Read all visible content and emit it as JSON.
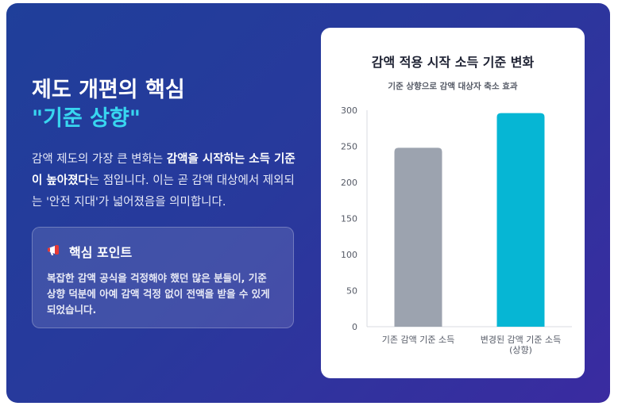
{
  "heading": {
    "line1": "제도 개편의 핵심",
    "line2": "\"기준 상향\""
  },
  "description": {
    "part1": "감액 제도의 가장 큰 변화는 ",
    "bold1": "감액을 시작하는 소득 기준이 높아졌다",
    "part2": "는 점입니다. 이는 곧 감액 대상에서 제외되는 '안전 지대'가 넓어졌음을 의미합니다."
  },
  "key_point": {
    "icon": "megaphone-icon",
    "title": "핵심 포인트",
    "body": "복잡한 감액 공식을 걱정해야 했던 많은 분들이, 기준 상향 덕분에 아예 감액 걱정 없이 전액을 받을 수 있게 되었습니다."
  },
  "chart_data": {
    "type": "bar",
    "title": "감액 적용 시작 소득 기준 변화",
    "subtitle": "기준 상향으로 감액 대상자 축소 효과",
    "categories": [
      "기존 감액 기준 소득",
      "변경된 감액 기준 소득 (상향)"
    ],
    "category_lines": [
      [
        "기존 감액 기준 소득"
      ],
      [
        "변경된 감액 기준 소득",
        "(상향)"
      ]
    ],
    "values": [
      248,
      296
    ],
    "colors": [
      "#9ca3af",
      "#06b6d4"
    ],
    "ylim": [
      0,
      300
    ],
    "yticks": [
      0,
      50,
      100,
      150,
      200,
      250,
      300
    ],
    "grid": false,
    "legend": "none"
  }
}
